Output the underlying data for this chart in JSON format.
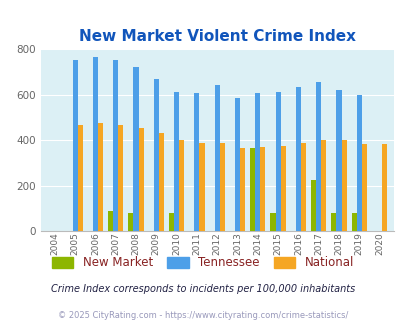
{
  "title": "New Market Violent Crime Index",
  "years": [
    2004,
    2005,
    2006,
    2007,
    2008,
    2009,
    2010,
    2011,
    2012,
    2013,
    2014,
    2015,
    2016,
    2017,
    2018,
    2019,
    2020
  ],
  "new_market": [
    0,
    0,
    0,
    87,
    80,
    0,
    80,
    0,
    0,
    0,
    367,
    80,
    0,
    225,
    80,
    80,
    0
  ],
  "tennessee": [
    0,
    755,
    765,
    753,
    722,
    670,
    612,
    607,
    645,
    585,
    607,
    612,
    635,
    657,
    622,
    598,
    0
  ],
  "national": [
    0,
    469,
    474,
    468,
    455,
    430,
    402,
    388,
    390,
    368,
    369,
    375,
    386,
    399,
    401,
    384,
    382
  ],
  "bar_width": 0.25,
  "color_new_market": "#8DB600",
  "color_tennessee": "#4D9FE8",
  "color_national": "#F5A623",
  "bg_color": "#DCF0F5",
  "ylim": [
    0,
    800
  ],
  "yticks": [
    0,
    200,
    400,
    600,
    800
  ],
  "title_color": "#1155BB",
  "title_fontsize": 11,
  "legend_label_nm": "New Market",
  "legend_label_tn": "Tennessee",
  "legend_label_nat": "National",
  "footnote1": "Crime Index corresponds to incidents per 100,000 inhabitants",
  "footnote2": "© 2025 CityRating.com - https://www.cityrating.com/crime-statistics/",
  "footnote1_color": "#222244",
  "footnote2_color": "#9999BB"
}
